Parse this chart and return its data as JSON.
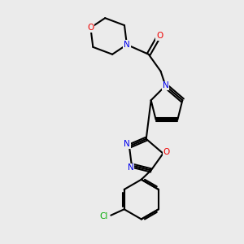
{
  "background_color": "#ebebeb",
  "bond_color": "#000000",
  "N_color": "#0000ee",
  "O_color": "#ee0000",
  "Cl_color": "#00aa00",
  "bond_width": 1.5,
  "fig_width": 3.0,
  "fig_height": 3.0,
  "dpi": 100,
  "xlim": [
    0,
    10
  ],
  "ylim": [
    0,
    10
  ]
}
